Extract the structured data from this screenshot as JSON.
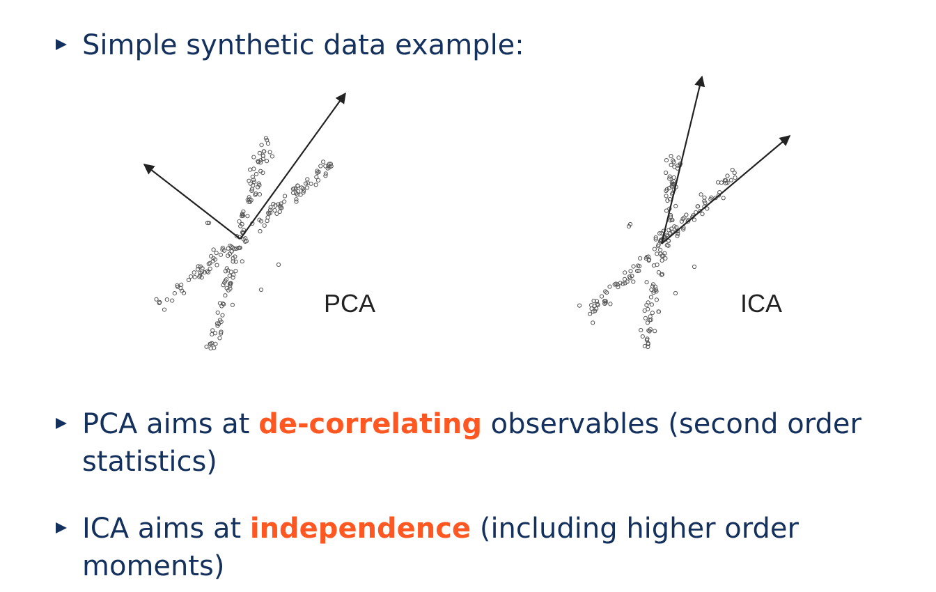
{
  "slide": {
    "bullet_1": "Simple synthetic data example:",
    "bullet_2": {
      "pre": "PCA aims at ",
      "highlight": "de-correlating",
      "post": " observables (second order statistics)"
    },
    "bullet_3": {
      "pre": "ICA aims at ",
      "highlight": "independence",
      "post": " (including higher order moments)"
    }
  },
  "figures": {
    "left_label": "PCA",
    "right_label": "ICA"
  },
  "colors": {
    "text": "#14305c",
    "highlight": "#ff5722"
  }
}
